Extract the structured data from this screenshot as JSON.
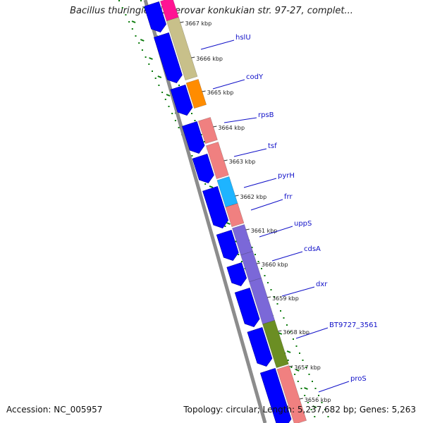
{
  "title": "Bacillus thuringiensis serovar konkukian str. 97-27, complet...",
  "footer": {
    "accession_label": "Accession:",
    "accession": "NC_005957",
    "topology_text": "Topology: circular; Length: 5,237,682 bp; Genes: 5,263"
  },
  "colors": {
    "backbone": "#8c8c8c",
    "cds_blue": "#0000ff",
    "gc_ticks": "#0a7a0a",
    "label_blue": "#1010c8",
    "khaki": "#c8c08a",
    "orange": "#ff8c00",
    "salmon": "#f08080",
    "cyan": "#1eb4ff",
    "purple": "#7b68d8",
    "olive": "#6b8e23",
    "magenta": "#ff1493"
  },
  "kbp_marks": [
    "3667 kbp",
    "3666 kbp",
    "3665 kbp",
    "3664 kbp",
    "3663 kbp",
    "3662 kbp",
    "3661 kbp",
    "3660 kbp",
    "3659 kbp",
    "3658 kbp",
    "3657 kbp",
    "3656 kbp"
  ],
  "genes": [
    {
      "name": "hslU",
      "color": "khaki"
    },
    {
      "name": "codY",
      "color": "orange"
    },
    {
      "name": "rpsB",
      "color": "salmon"
    },
    {
      "name": "tsf",
      "color": "salmon"
    },
    {
      "name": "pyrH",
      "color": "cyan"
    },
    {
      "name": "frr",
      "color": "salmon"
    },
    {
      "name": "uppS",
      "color": "purple"
    },
    {
      "name": "cdsA",
      "color": "purple"
    },
    {
      "name": "dxr",
      "color": "purple"
    },
    {
      "name": "BT9727_3561",
      "color": "olive"
    },
    {
      "name": "proS",
      "color": "salmon"
    }
  ]
}
